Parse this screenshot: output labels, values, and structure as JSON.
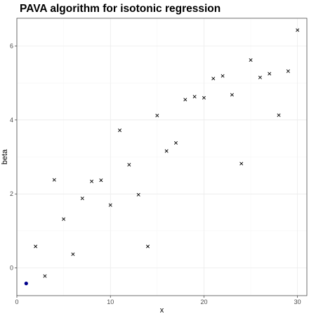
{
  "chart_data": {
    "type": "scatter",
    "title": "PAVA algorithm for isotonic regression",
    "xlabel": "x",
    "ylabel": "beta",
    "xlim": [
      0,
      31
    ],
    "ylim": [
      -0.75,
      6.75
    ],
    "x_ticks": [
      0,
      10,
      20,
      30
    ],
    "y_ticks": [
      0,
      2,
      4,
      6
    ],
    "grid": true,
    "theme": "bw",
    "series": [
      {
        "marker": "x",
        "color": "#000000",
        "points": [
          {
            "x": 2,
            "y": 0.58
          },
          {
            "x": 3,
            "y": -0.22
          },
          {
            "x": 4,
            "y": 2.38
          },
          {
            "x": 5,
            "y": 1.32
          },
          {
            "x": 6,
            "y": 0.37
          },
          {
            "x": 7,
            "y": 1.88
          },
          {
            "x": 8,
            "y": 2.34
          },
          {
            "x": 9,
            "y": 2.37
          },
          {
            "x": 10,
            "y": 1.7
          },
          {
            "x": 11,
            "y": 3.72
          },
          {
            "x": 12,
            "y": 2.79
          },
          {
            "x": 13,
            "y": 1.98
          },
          {
            "x": 14,
            "y": 0.58
          },
          {
            "x": 15,
            "y": 4.12
          },
          {
            "x": 16,
            "y": 3.16
          },
          {
            "x": 17,
            "y": 3.38
          },
          {
            "x": 18,
            "y": 4.55
          },
          {
            "x": 19,
            "y": 4.63
          },
          {
            "x": 20,
            "y": 4.6
          },
          {
            "x": 21,
            "y": 5.12
          },
          {
            "x": 22,
            "y": 5.19
          },
          {
            "x": 23,
            "y": 4.68
          },
          {
            "x": 24,
            "y": 2.82
          },
          {
            "x": 25,
            "y": 5.62
          },
          {
            "x": 26,
            "y": 5.15
          },
          {
            "x": 27,
            "y": 5.25
          },
          {
            "x": 28,
            "y": 4.13
          },
          {
            "x": 29,
            "y": 5.32
          },
          {
            "x": 30,
            "y": 6.43
          }
        ]
      },
      {
        "marker": "dot",
        "color": "#00008b",
        "points": [
          {
            "x": 1,
            "y": -0.42
          }
        ]
      }
    ]
  }
}
